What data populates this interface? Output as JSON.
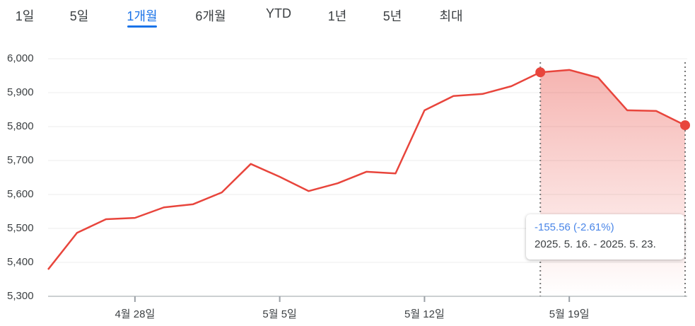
{
  "tabs": [
    "1일",
    "5일",
    "1개월",
    "6개월",
    "YTD",
    "1년",
    "5년",
    "최대"
  ],
  "selected_tab": 2,
  "chart_data": {
    "type": "line",
    "categories": [
      null,
      null,
      null,
      "4월 28일",
      null,
      null,
      null,
      null,
      "5월 5일",
      null,
      null,
      null,
      null,
      "5월 12일",
      null,
      null,
      null,
      null,
      "5월 19일",
      null,
      null,
      null,
      null
    ],
    "values": [
      5379,
      5487,
      5527,
      5531,
      5562,
      5571,
      5606,
      5690,
      5652,
      5610,
      5633,
      5667,
      5662,
      5848,
      5890,
      5896,
      5919,
      5960,
      5967,
      5944,
      5848,
      5846,
      5804
    ],
    "color": "#e8453c",
    "ylim": [
      5300,
      6000
    ],
    "yticks": [
      {
        "value": 5300,
        "label": "5,300"
      },
      {
        "value": 5400,
        "label": "5,400"
      },
      {
        "value": 5500,
        "label": "5,500"
      },
      {
        "value": 5600,
        "label": "5,600"
      },
      {
        "value": 5700,
        "label": "5,700"
      },
      {
        "value": 5800,
        "label": "5,800"
      },
      {
        "value": 5900,
        "label": "5,900"
      },
      {
        "value": 6000,
        "label": "6,000"
      }
    ],
    "grid": true,
    "highlight": {
      "start": 17,
      "end": 22
    },
    "annotation": {
      "change": "-155.56 (-2.61%)",
      "range": "2025. 5. 16. - 2025. 5. 23."
    }
  }
}
